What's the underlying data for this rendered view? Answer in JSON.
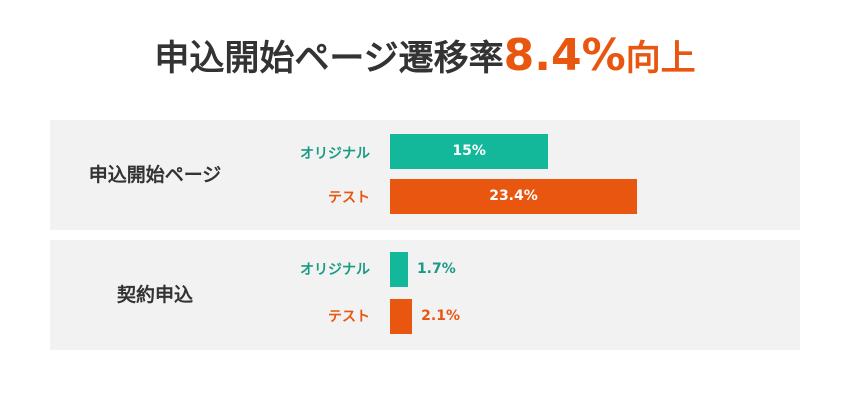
{
  "headline": {
    "lead": "申込開始ページ遷移率",
    "accent": "8.4%",
    "tail": "向上"
  },
  "colors": {
    "original": "#13b89b",
    "test": "#e8560f",
    "text": "#333333",
    "panel": "#f2f2f2"
  },
  "chart_data": {
    "type": "bar",
    "orientation": "horizontal",
    "title": "申込開始ページ遷移率8.4%向上",
    "categories": [
      "申込開始ページ",
      "契約申込"
    ],
    "series": [
      {
        "name": "オリジナル",
        "values": [
          15,
          1.7
        ],
        "labels": [
          "15%",
          "1.7%"
        ]
      },
      {
        "name": "テスト",
        "values": [
          23.4,
          2.1
        ],
        "labels": [
          "23.4%",
          "2.1%"
        ]
      }
    ],
    "xlim": [
      0,
      40
    ],
    "unit": "%",
    "grid": false
  }
}
